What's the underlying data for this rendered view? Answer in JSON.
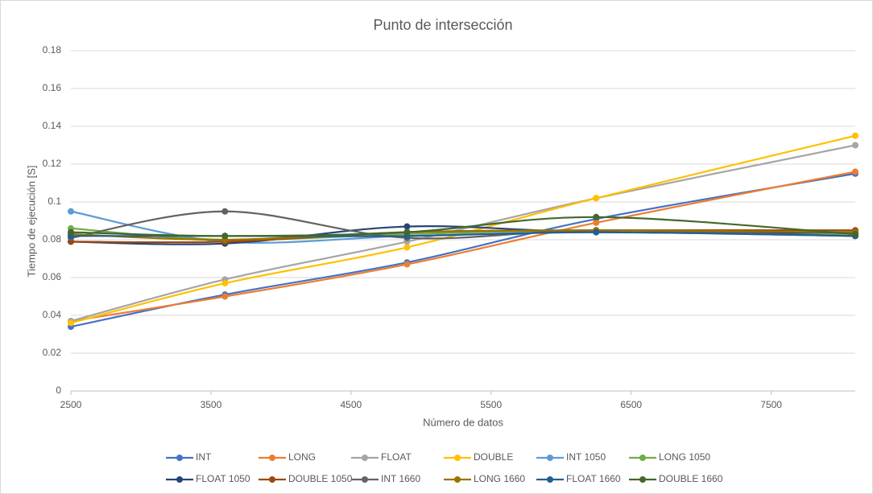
{
  "chart_data": {
    "type": "line",
    "title": "Punto de intersección",
    "x_label": "Número de datos",
    "y_label": "Tiempo de ejecución [S]",
    "x": [
      2500,
      3600,
      4900,
      6250,
      8100
    ],
    "xlim": [
      2500,
      8100
    ],
    "xticks": [
      2500,
      3500,
      4500,
      5500,
      6500,
      7500
    ],
    "ylim": [
      0,
      0.18
    ],
    "yticks": [
      0,
      0.02,
      0.04,
      0.06,
      0.08,
      0.1,
      0.12,
      0.14,
      0.16,
      0.18
    ],
    "grid": true,
    "smooth": true,
    "legend": "bottom",
    "series": [
      {
        "name": "INT",
        "color": "#4472c4",
        "values": [
          0.034,
          0.051,
          0.068,
          0.091,
          0.115
        ]
      },
      {
        "name": "LONG",
        "color": "#ed7d31",
        "values": [
          0.037,
          0.05,
          0.067,
          0.089,
          0.116
        ]
      },
      {
        "name": "FLOAT",
        "color": "#a5a5a5",
        "values": [
          0.037,
          0.059,
          0.079,
          0.102,
          0.13
        ]
      },
      {
        "name": "DOUBLE",
        "color": "#ffc000",
        "values": [
          0.036,
          0.057,
          0.076,
          0.102,
          0.135
        ]
      },
      {
        "name": "INT 1050",
        "color": "#5b9bd5",
        "values": [
          0.095,
          0.079,
          0.082,
          0.084,
          0.082
        ]
      },
      {
        "name": "LONG 1050",
        "color": "#70ad47",
        "values": [
          0.086,
          0.08,
          0.083,
          0.085,
          0.083
        ]
      },
      {
        "name": "FLOAT 1050",
        "color": "#264478",
        "values": [
          0.079,
          0.078,
          0.087,
          0.084,
          0.084
        ]
      },
      {
        "name": "DOUBLE 1050",
        "color": "#9e480e",
        "values": [
          0.079,
          0.079,
          0.084,
          0.085,
          0.085
        ]
      },
      {
        "name": "INT 1660",
        "color": "#636363",
        "values": [
          0.081,
          0.095,
          0.081,
          0.085,
          0.082
        ]
      },
      {
        "name": "LONG 1660",
        "color": "#997300",
        "values": [
          0.083,
          0.08,
          0.084,
          0.085,
          0.084
        ]
      },
      {
        "name": "FLOAT 1660",
        "color": "#255e91",
        "values": [
          0.082,
          0.082,
          0.082,
          0.084,
          0.082
        ]
      },
      {
        "name": "DOUBLE 1660",
        "color": "#43682b",
        "values": [
          0.084,
          0.082,
          0.084,
          0.092,
          0.083
        ]
      }
    ]
  }
}
